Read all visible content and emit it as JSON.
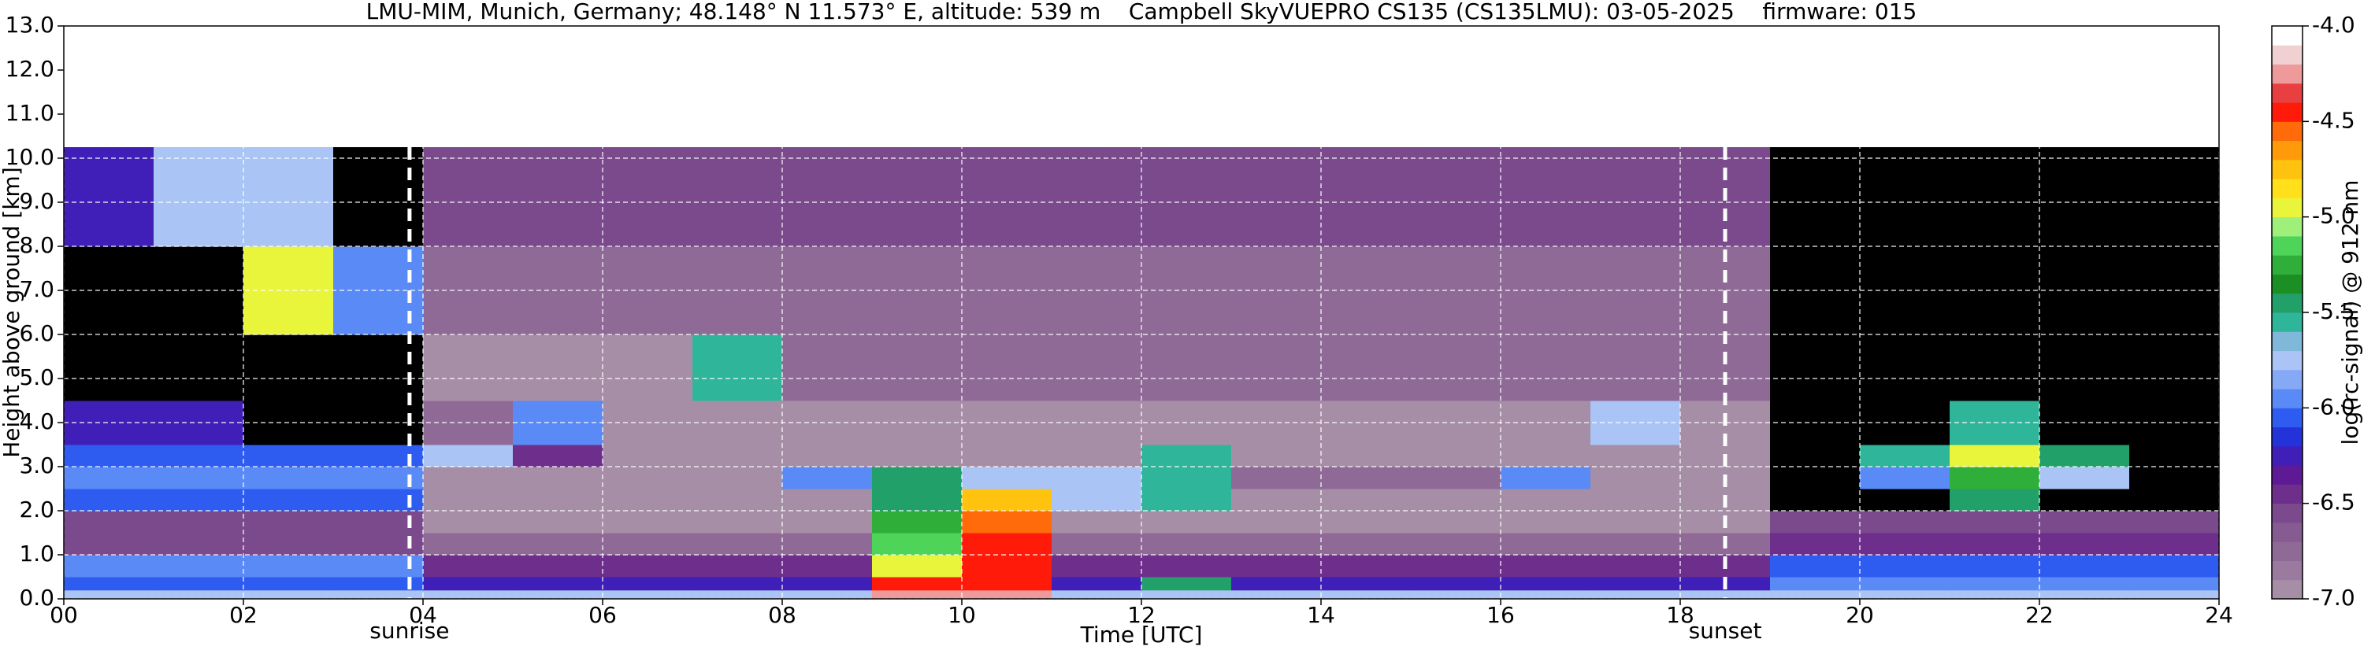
{
  "chart_data": {
    "type": "heatmap",
    "title": "LMU-MIM, Munich, Germany; 48.148° N 11.573° E, altitude: 539 m    Campbell SkyVUEPRO CS135 (CS135LMU): 03-05-2025    firmware: 015",
    "x_label": "Time [UTC]",
    "y_label": "Height above ground [km]",
    "colorbar_label": "log(rc-signal) @ 912 nm",
    "xlim": [
      0,
      24
    ],
    "xticks": [
      {
        "value": 0,
        "label": "00"
      },
      {
        "value": 2,
        "label": "02"
      },
      {
        "value": 4,
        "label": "04"
      },
      {
        "value": 6,
        "label": "06"
      },
      {
        "value": 8,
        "label": "08"
      },
      10,
      12,
      14,
      16,
      18,
      20,
      22,
      24
    ],
    "ylim": [
      0,
      13
    ],
    "yticks": [
      {
        "value": 0,
        "label": "0.0"
      },
      {
        "value": 1,
        "label": "1.0"
      },
      {
        "value": 2,
        "label": "2.0"
      },
      {
        "value": 3,
        "label": "3.0"
      },
      {
        "value": 4,
        "label": "4.0"
      },
      {
        "value": 5,
        "label": "5.0"
      },
      {
        "value": 6,
        "label": "6.0"
      },
      {
        "value": 7,
        "label": "7.0"
      },
      {
        "value": 8,
        "label": "8.0"
      },
      {
        "value": 9,
        "label": "9.0"
      },
      {
        "value": 10,
        "label": "10.0"
      },
      {
        "value": 11,
        "label": "11.0"
      },
      {
        "value": 12,
        "label": "12.0"
      },
      {
        "value": 13,
        "label": "13.0"
      }
    ],
    "zlim": [
      -7,
      -4
    ],
    "zticks": [
      {
        "value": -7,
        "label": "-7.0"
      },
      -6.5,
      {
        "value": -6,
        "label": "-6.0"
      },
      -5.5,
      {
        "value": -5,
        "label": "-5.0"
      },
      -4.5,
      {
        "value": -4,
        "label": "-4.0"
      }
    ],
    "grid": true,
    "under_color": "#000000",
    "colors": [
      "#a78ea7",
      "#9a7a9e",
      "#8f6a97",
      "#855b92",
      "#7a4a8d",
      "#6e2f8c",
      "#5e1a95",
      "#3f1fb8",
      "#2433d9",
      "#2f5cf0",
      "#5a8af5",
      "#86a9f5",
      "#a9c4f5",
      "#7fb8d8",
      "#2fb59a",
      "#22a06a",
      "#1b8f24",
      "#2fae3a",
      "#4fd45a",
      "#9ef07a",
      "#e8f53a",
      "#ffe01a",
      "#ffc20f",
      "#ff9a0a",
      "#ff6a0a",
      "#ff1a0a",
      "#e84040",
      "#ee9a9a",
      "#f0d0d0",
      "#ffffff"
    ],
    "x_edges": [
      0,
      1,
      2,
      3,
      4,
      5,
      6,
      7,
      8,
      9,
      10,
      11,
      12,
      13,
      14,
      15,
      16,
      17,
      18,
      19,
      20,
      21,
      22,
      23,
      24
    ],
    "y_edges": [
      0,
      0.2,
      0.5,
      1,
      1.5,
      2,
      2.5,
      3,
      3.5,
      4.5,
      6,
      8,
      10.25
    ],
    "z": [
      [
        -5.8,
        -5.8,
        -5.8,
        -5.8,
        -5.8,
        -5.8,
        -5.8,
        -5.8,
        -5.8,
        -4.3,
        -4.3,
        -5.8,
        -5.8,
        -5.8,
        -5.8,
        -5.8,
        -5.8,
        -5.8,
        -5.8,
        -5.8,
        -5.8,
        -5.8,
        -5.8,
        -5.8
      ],
      [
        -6.1,
        -6.1,
        -6.1,
        -6.1,
        -6.2,
        -6.2,
        -6.2,
        -6.2,
        -6.2,
        -4.5,
        -4.5,
        -6.2,
        -5.4,
        -6.2,
        -6.2,
        -6.2,
        -6.2,
        -6.2,
        -6.2,
        -6.0,
        -6.0,
        -6.0,
        -6.0,
        -6.0
      ],
      [
        -6.0,
        -6.0,
        -6.0,
        -6.0,
        -6.5,
        -6.5,
        -6.5,
        -6.5,
        -6.5,
        -5.0,
        -4.5,
        -6.5,
        -6.5,
        -6.5,
        -6.5,
        -6.5,
        -6.5,
        -6.5,
        -6.5,
        -6.1,
        -6.1,
        -6.1,
        -6.1,
        -6.1
      ],
      [
        -6.6,
        -6.6,
        -6.6,
        -6.6,
        -6.7,
        -6.7,
        -6.7,
        -6.7,
        -6.7,
        -5.2,
        -4.5,
        -6.8,
        -6.8,
        -6.8,
        -6.8,
        -6.8,
        -6.8,
        -6.8,
        -6.8,
        -6.5,
        -6.5,
        -6.5,
        -6.5,
        -6.5
      ],
      [
        -6.6,
        -6.6,
        -6.6,
        -6.6,
        -6.9,
        -6.9,
        -6.9,
        -6.9,
        -6.9,
        -5.3,
        -4.6,
        -6.9,
        -6.9,
        -6.9,
        -6.9,
        -6.9,
        -6.9,
        -6.9,
        -6.9,
        -6.6,
        -6.6,
        -6.6,
        -6.6,
        -6.6
      ],
      [
        -6.1,
        -6.1,
        -6.1,
        -6.1,
        -7.0,
        -7.0,
        -7.0,
        -7.0,
        -7.0,
        -5.4,
        -4.8,
        -5.8,
        -5.6,
        -6.9,
        -6.9,
        -6.9,
        -6.9,
        -6.9,
        -6.9,
        -7.5,
        -7.5,
        -5.5,
        -7.5,
        -7.5
      ],
      [
        -6.0,
        -6.0,
        -6.0,
        -6.0,
        -6.9,
        -6.9,
        -6.9,
        -6.9,
        -6.0,
        -5.5,
        -5.7,
        -5.7,
        -5.6,
        -6.8,
        -6.8,
        -6.8,
        -6.0,
        -6.9,
        -6.9,
        -7.5,
        -6.0,
        -5.3,
        -5.8,
        -7.5
      ],
      [
        -6.1,
        -6.1,
        -6.1,
        -6.1,
        -5.8,
        -6.5,
        -6.9,
        -6.9,
        -6.9,
        -6.9,
        -6.9,
        -6.9,
        -5.6,
        -6.9,
        -6.9,
        -6.9,
        -6.9,
        -6.9,
        -6.9,
        -7.5,
        -5.6,
        -5.0,
        -5.5,
        -7.5
      ],
      [
        -6.2,
        -6.2,
        -7.5,
        -7.5,
        -6.8,
        -5.9,
        -6.9,
        -6.9,
        -6.9,
        -6.9,
        -6.9,
        -6.9,
        -6.9,
        -6.9,
        -6.9,
        -6.9,
        -6.9,
        -5.8,
        -6.9,
        -7.5,
        -7.5,
        -5.6,
        -7.5,
        -7.5
      ],
      [
        -7.5,
        -7.5,
        -7.5,
        -7.5,
        -6.9,
        -6.9,
        -6.9,
        -5.6,
        -6.8,
        -6.8,
        -6.8,
        -6.8,
        -6.8,
        -6.8,
        -6.8,
        -6.8,
        -6.8,
        -6.8,
        -6.8,
        -7.5,
        -7.5,
        -7.5,
        -7.5,
        -7.5
      ],
      [
        -7.5,
        -7.5,
        -5.0,
        -6.0,
        -6.7,
        -6.7,
        -6.7,
        -6.7,
        -6.7,
        -6.7,
        -6.7,
        -6.7,
        -6.7,
        -6.7,
        -6.7,
        -6.7,
        -6.7,
        -6.7,
        -6.7,
        -7.5,
        -7.5,
        -7.5,
        -7.5,
        -7.5
      ],
      [
        -6.2,
        -5.8,
        -5.8,
        -7.5,
        -6.6,
        -6.6,
        -6.6,
        -6.6,
        -6.6,
        -6.6,
        -6.6,
        -6.6,
        -6.6,
        -6.6,
        -6.6,
        -6.6,
        -6.6,
        -6.6,
        -6.6,
        -7.5,
        -7.5,
        -7.5,
        -7.5,
        -7.5
      ]
    ],
    "annotations": [
      {
        "x": 3.85,
        "text": "sunrise"
      },
      {
        "x": 18.5,
        "text": "sunset"
      }
    ]
  }
}
